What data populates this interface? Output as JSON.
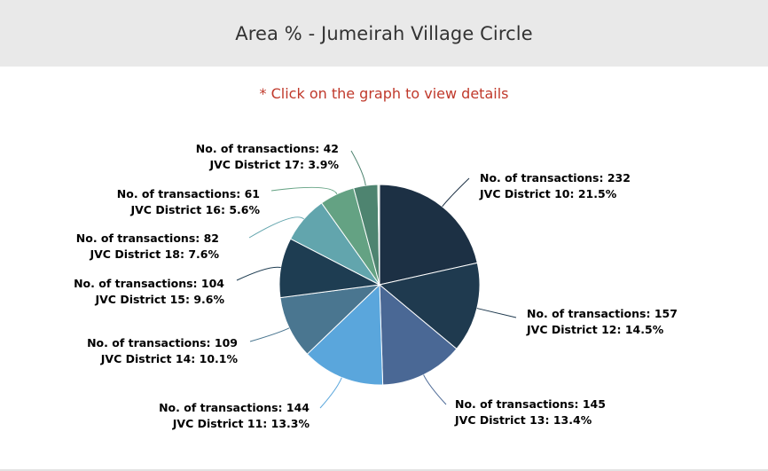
{
  "header": {
    "title": "Area % - Jumeirah Village Circle"
  },
  "hint": "* Click on the graph to view details",
  "chart_data": {
    "type": "pie",
    "title": "Area % - Jumeirah Village Circle",
    "label_prefix": "No. of transactions: ",
    "slices": [
      {
        "name": "JVC District 10",
        "value": 232,
        "percent": "21.5%",
        "color": "#1c3044"
      },
      {
        "name": "JVC District 12",
        "value": 157,
        "percent": "14.5%",
        "color": "#1f3a4f"
      },
      {
        "name": "JVC District 13",
        "value": 145,
        "percent": "13.4%",
        "color": "#4a6895"
      },
      {
        "name": "JVC District 11",
        "value": 144,
        "percent": "13.3%",
        "color": "#5aa6dc"
      },
      {
        "name": "JVC District 14",
        "value": 109,
        "percent": "10.1%",
        "color": "#4a7690"
      },
      {
        "name": "JVC District 15",
        "value": 104,
        "percent": "9.6%",
        "color": "#1e3d52"
      },
      {
        "name": "JVC District 18",
        "value": 82,
        "percent": "7.6%",
        "color": "#62a5ad"
      },
      {
        "name": "JVC District 16",
        "value": 61,
        "percent": "5.6%",
        "color": "#64a283"
      },
      {
        "name": "JVC District 17",
        "value": 42,
        "percent": "3.9%",
        "color": "#4e8470"
      },
      {
        "name": "",
        "value": 3,
        "percent": "",
        "color": "#d8ead8"
      }
    ]
  }
}
